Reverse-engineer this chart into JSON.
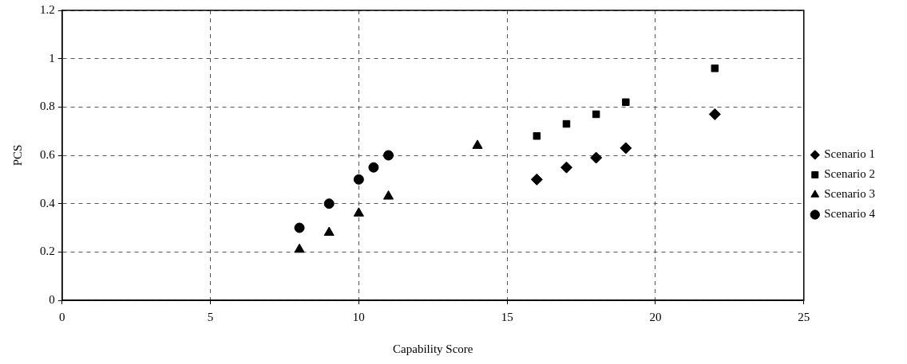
{
  "chart_data": {
    "type": "scatter",
    "xlabel": "Capability Score",
    "ylabel": "PCS",
    "xlim": [
      0,
      25
    ],
    "xticks": [
      0,
      5,
      10,
      15,
      20,
      25
    ],
    "ylim": [
      0,
      1.2
    ],
    "yticks": [
      0,
      0.2,
      0.4,
      0.6,
      0.8,
      1,
      1.2
    ],
    "grid": true,
    "legend": "right",
    "series": [
      {
        "name": "Scenario 1",
        "color": "#000000",
        "marker": "diamond",
        "x": [
          16,
          17,
          18,
          19,
          22
        ],
        "values": [
          0.5,
          0.55,
          0.59,
          0.63,
          0.77
        ]
      },
      {
        "name": "Scenario 2",
        "color": "#000000",
        "marker": "square",
        "x": [
          16,
          17,
          18,
          19,
          22
        ],
        "values": [
          0.68,
          0.73,
          0.77,
          0.82,
          0.96
        ]
      },
      {
        "name": "Scenario 3",
        "color": "#000000",
        "marker": "triangle",
        "x": [
          8,
          9,
          10,
          11,
          14
        ],
        "values": [
          0.21,
          0.28,
          0.36,
          0.43,
          0.64
        ]
      },
      {
        "name": "Scenario 4",
        "color": "#000000",
        "marker": "circle",
        "x": [
          8,
          9,
          10,
          10.5,
          11
        ],
        "values": [
          0.3,
          0.4,
          0.5,
          0.55,
          0.6
        ]
      }
    ]
  }
}
